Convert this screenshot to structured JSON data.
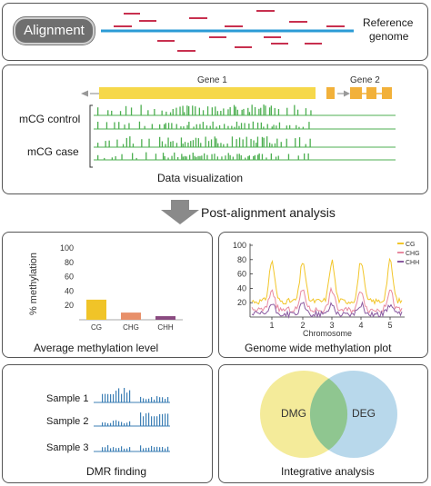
{
  "alignment": {
    "button_label": "Alignment",
    "reference_label": "Reference",
    "genome_label": "genome"
  },
  "visualization": {
    "gene1_label": "Gene 1",
    "gene2_label": "Gene 2",
    "track1_label": "mCG control",
    "track2_label": "mCG case",
    "caption": "Data visualization"
  },
  "arrow_caption": "Post-alignment analysis",
  "average_panel": {
    "caption": "Average methylation level",
    "chart_data": {
      "type": "bar",
      "ylabel": "% methylation",
      "categories": [
        "CG",
        "CHG",
        "CHH"
      ],
      "values": [
        28,
        10,
        5
      ],
      "ylim": [
        0,
        100
      ],
      "yticks": [
        "100",
        "80",
        "60",
        "40",
        "20"
      ],
      "colors": [
        "#f0c428",
        "#e8906a",
        "#8a4a80"
      ]
    }
  },
  "genome_panel": {
    "caption": "Genome wide methylation plot",
    "chart_data": {
      "type": "line",
      "xlabel": "Chromosome",
      "xticks": [
        "1",
        "2",
        "3",
        "4",
        "5"
      ],
      "yticks": [
        "100",
        "80",
        "60",
        "40",
        "20"
      ],
      "ylim": [
        0,
        100
      ],
      "legend": [
        "CG",
        "CHG",
        "CHH"
      ],
      "legend_position": "top-right",
      "colors": [
        "#f2c62a",
        "#e88aa0",
        "#8a5aa0"
      ]
    }
  },
  "dmr_panel": {
    "caption": "DMR finding",
    "samples": [
      "Sample 1",
      "Sample 2",
      "Sample 3"
    ]
  },
  "integrative_panel": {
    "caption": "Integrative analysis",
    "left_label": "DMG",
    "right_label": "DEG"
  }
}
